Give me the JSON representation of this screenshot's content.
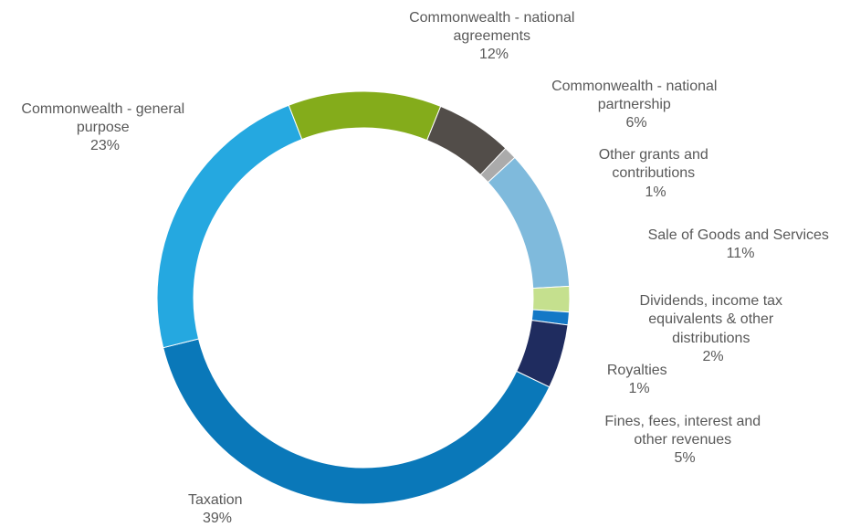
{
  "chart_data": {
    "type": "pie",
    "donut": true,
    "legend": "none",
    "slices": [
      {
        "name": "Taxation",
        "value": 39,
        "label": "39%",
        "color": "#0A78B9"
      },
      {
        "name": "Commonwealth - general purpose",
        "value": 23,
        "label": "23%",
        "color": "#25A8E0"
      },
      {
        "name": "Commonwealth - national agreements",
        "value": 12,
        "label": "12%",
        "color": "#84AC1B"
      },
      {
        "name": "Commonwealth - national partnership",
        "value": 6,
        "label": "6%",
        "color": "#524D49"
      },
      {
        "name": "Other grants and contributions",
        "value": 1,
        "label": "1%",
        "color": "#ABABAB"
      },
      {
        "name": "Sale of Goods and Services",
        "value": 11,
        "label": "11%",
        "color": "#7FBADC"
      },
      {
        "name": "Dividends, income tax equivalents & other distributions",
        "value": 2,
        "label": "2%",
        "color": "#C5E08E"
      },
      {
        "name": "Royalties",
        "value": 1,
        "label": "1%",
        "color": "#1478C6"
      },
      {
        "name": "Fines, fees, interest and other revenues",
        "value": 5,
        "label": "5%",
        "color": "#1F2C5F"
      }
    ]
  }
}
